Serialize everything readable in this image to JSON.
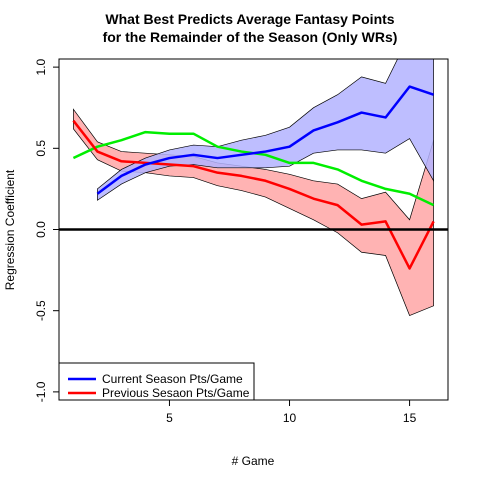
{
  "chart_data": {
    "type": "line",
    "title": [
      "What Best Predicts Average Fantasy Points",
      "for the Remainder of the Season (Only WRs)"
    ],
    "xlabel": "# Game",
    "ylabel": "Regression Coefficient",
    "xlim": [
      0.4,
      16.6
    ],
    "ylim": [
      -1.05,
      1.05
    ],
    "x_ticks": [
      5,
      10,
      15
    ],
    "y_ticks": [
      -1.0,
      -0.5,
      0.0,
      0.5,
      1.0
    ],
    "y_tick_labels": [
      "-1.0",
      "-0.5",
      "0.0",
      "0.5",
      "1.0"
    ],
    "zero_line": 0,
    "legend_position": "bottom-left",
    "series": [
      {
        "name": "Current Season Pts/Game",
        "color": "#0000ff",
        "band_fill": "#b3b3ff",
        "x": [
          2,
          3,
          4,
          5,
          6,
          7,
          8,
          9,
          10,
          11,
          12,
          13,
          14,
          15,
          16
        ],
        "values": [
          0.22,
          0.33,
          0.4,
          0.44,
          0.46,
          0.44,
          0.46,
          0.48,
          0.51,
          0.61,
          0.66,
          0.72,
          0.69,
          0.88,
          0.83
        ],
        "upper": [
          0.25,
          0.37,
          0.44,
          0.49,
          0.52,
          0.51,
          0.55,
          0.58,
          0.63,
          0.75,
          0.83,
          0.94,
          0.9,
          1.2,
          1.2
        ],
        "lower": [
          0.18,
          0.28,
          0.35,
          0.39,
          0.4,
          0.38,
          0.38,
          0.38,
          0.39,
          0.47,
          0.49,
          0.49,
          0.47,
          0.56,
          0.3
        ]
      },
      {
        "name": "Previous Sesaon Pts/Game",
        "color": "#ff0000",
        "band_fill": "#ffb3b3",
        "x": [
          1,
          2,
          3,
          4,
          5,
          6,
          7,
          8,
          9,
          10,
          11,
          12,
          13,
          14,
          15,
          16
        ],
        "values": [
          0.67,
          0.48,
          0.42,
          0.41,
          0.4,
          0.39,
          0.35,
          0.33,
          0.3,
          0.25,
          0.19,
          0.15,
          0.03,
          0.05,
          -0.24,
          0.05
        ],
        "upper": [
          0.74,
          0.54,
          0.48,
          0.47,
          0.46,
          0.45,
          0.41,
          0.39,
          0.37,
          0.34,
          0.3,
          0.28,
          0.19,
          0.23,
          0.06,
          0.55
        ],
        "lower": [
          0.62,
          0.43,
          0.36,
          0.35,
          0.33,
          0.32,
          0.27,
          0.24,
          0.2,
          0.13,
          0.06,
          -0.02,
          -0.14,
          -0.16,
          -0.53,
          -0.47
        ]
      },
      {
        "name": "",
        "color": "#00ee00",
        "x": [
          1,
          2,
          3,
          4,
          5,
          6,
          7,
          8,
          9,
          10,
          11,
          12,
          13,
          14,
          15,
          16
        ],
        "values": [
          0.44,
          0.51,
          0.55,
          0.6,
          0.59,
          0.59,
          0.51,
          0.48,
          0.46,
          0.41,
          0.41,
          0.37,
          0.3,
          0.25,
          0.22,
          0.15
        ]
      }
    ]
  }
}
